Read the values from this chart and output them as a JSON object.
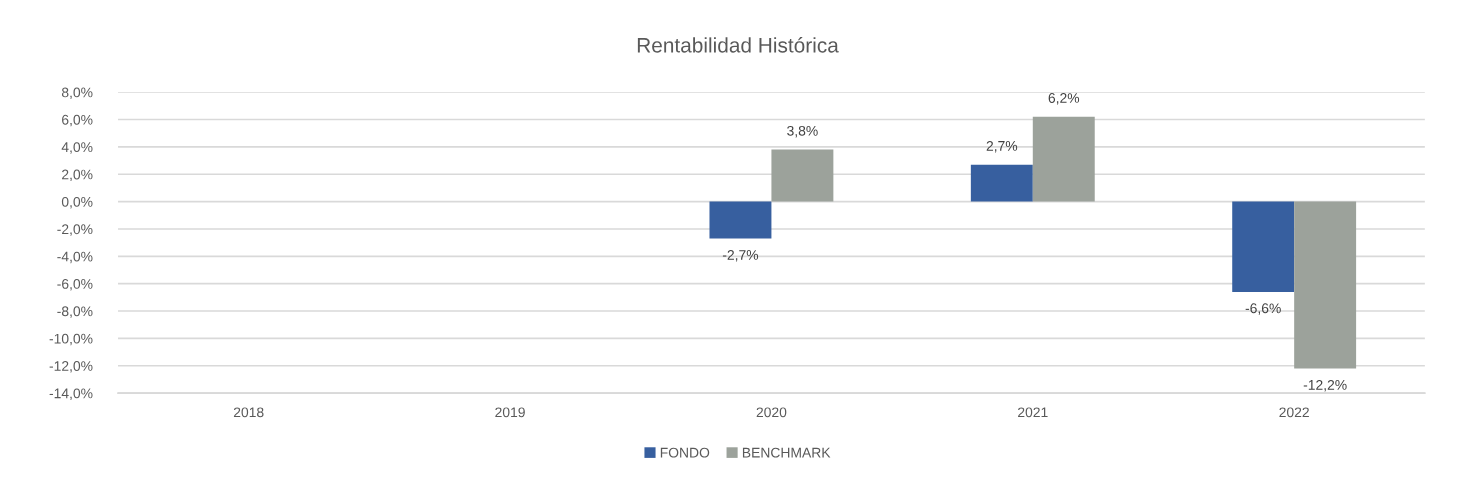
{
  "chart_data": {
    "type": "bar",
    "title": "Rentabilidad Histórica",
    "categories": [
      "2018",
      "2019",
      "2020",
      "2021",
      "2022"
    ],
    "series": [
      {
        "name": "FONDO",
        "color": "#375f9f",
        "values": [
          null,
          null,
          -2.7,
          2.7,
          -6.6
        ],
        "value_labels": [
          null,
          null,
          "-2,7%",
          "2,7%",
          "-6,6%"
        ]
      },
      {
        "name": "BENCHMARK",
        "color": "#9ca29b",
        "values": [
          null,
          null,
          3.8,
          6.2,
          -12.2
        ],
        "value_labels": [
          null,
          null,
          "3,8%",
          "6,2%",
          "-12,2%"
        ]
      }
    ],
    "ylim": [
      -14,
      8
    ],
    "yticks": [
      {
        "value": 8,
        "label": "8,0%"
      },
      {
        "value": 6,
        "label": "6,0%"
      },
      {
        "value": 4,
        "label": "4,0%"
      },
      {
        "value": 2,
        "label": "2,0%"
      },
      {
        "value": 0,
        "label": "0,0%"
      },
      {
        "value": -2,
        "label": "-2,0%"
      },
      {
        "value": -4,
        "label": "-4,0%"
      },
      {
        "value": -6,
        "label": "-6,0%"
      },
      {
        "value": -8,
        "label": "-8,0%"
      },
      {
        "value": -10,
        "label": "-10,0%"
      },
      {
        "value": -12,
        "label": "-12,0%"
      },
      {
        "value": -14,
        "label": "-14,0%"
      }
    ],
    "grid": "y",
    "legend": "bottom"
  }
}
